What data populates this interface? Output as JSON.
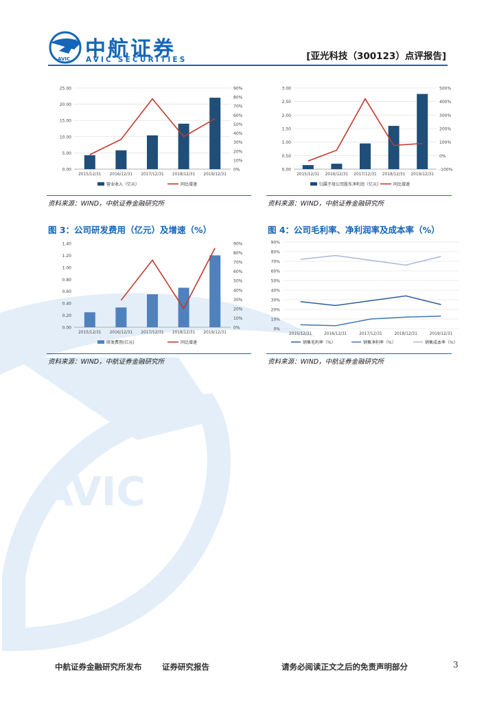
{
  "header": {
    "brand_cn": "中航证券",
    "brand_en": "AVIC SECURITIES",
    "logo_text": "AVIC",
    "report_tag": "[亚光科技（300123）点评报告]"
  },
  "watermark_text": "AVIC",
  "sources": {
    "s1": "资料来源：WIND，中航证券金融研究所",
    "s2": "资料来源：WIND，中航证券金融研究所",
    "s3": "资料来源：WIND，中航证券金融研究所",
    "s4": "资料来源：WIND，中航证券金融研究所"
  },
  "figure_titles": {
    "fig3": "图 3：公司研发费用（亿元）及增速（%）",
    "fig4": "图 4：公司毛利率、净利润率及成本率（%）"
  },
  "footer": {
    "left": "中航证券金融研究所发布",
    "middle": "证券研究报告",
    "right": "请务必阅读正文之后的免责声明部分",
    "page": "3"
  },
  "colors": {
    "brand": "#1565b8",
    "bar_dark": "#1f4e79",
    "bar_mid": "#4f81bd",
    "line_red": "#c0392b",
    "gross": "#2e5e94",
    "net": "#3f76b5",
    "cost": "#a9b8d8",
    "watermark": "#e3eef8"
  },
  "chart_data": [
    {
      "type": "bar",
      "categories": [
        "2015/12/31",
        "2016/12/31",
        "2017/12/31",
        "2018/12/31",
        "2019/12/31"
      ],
      "series": [
        {
          "name": "营业收入（亿元）",
          "kind": "bar",
          "axis": "left",
          "values": [
            4.3,
            5.8,
            10.4,
            14.0,
            22.0
          ]
        },
        {
          "name": "同比增速",
          "kind": "line",
          "axis": "right",
          "values": [
            16,
            33,
            78,
            36,
            56
          ]
        }
      ],
      "y_left": {
        "min": 0,
        "max": 25,
        "ticks": [
          "0.00",
          "5.00",
          "10.00",
          "15.00",
          "20.00",
          "25.00"
        ]
      },
      "y_right": {
        "min": 0,
        "max": 90,
        "ticks": [
          "0%",
          "10%",
          "20%",
          "30%",
          "40%",
          "50%",
          "60%",
          "70%",
          "80%",
          "90%"
        ]
      },
      "grid": true,
      "legend": "bottom"
    },
    {
      "type": "bar",
      "categories": [
        "2015/12/31",
        "2016/12/31",
        "2017/12/31",
        "2018/12/31",
        "2019/12/31"
      ],
      "series": [
        {
          "name": "归属于母公司股东净利润（亿元）",
          "kind": "bar",
          "axis": "left",
          "values": [
            0.15,
            0.2,
            0.95,
            1.6,
            2.78
          ]
        },
        {
          "name": "同比增速",
          "kind": "line",
          "axis": "right",
          "values": [
            -40,
            40,
            420,
            75,
            90
          ]
        }
      ],
      "y_left": {
        "min": 0,
        "max": 3,
        "ticks": [
          "0.00",
          "0.50",
          "1.00",
          "1.50",
          "2.00",
          "2.50",
          "3.00"
        ]
      },
      "y_right": {
        "min": -100,
        "max": 500,
        "ticks": [
          "-100%",
          "0%",
          "100%",
          "200%",
          "300%",
          "400%",
          "500%"
        ]
      },
      "grid": true,
      "legend": "bottom"
    },
    {
      "type": "bar",
      "title": "图 3：公司研发费用（亿元）及增速（%）",
      "categories": [
        "2015/12/31",
        "2016/12/31",
        "2017/12/31",
        "2018/12/31",
        "2019/12/31"
      ],
      "series": [
        {
          "name": "研发费用(亿元)",
          "kind": "bar",
          "axis": "left",
          "values": [
            0.25,
            0.33,
            0.55,
            0.66,
            1.2
          ]
        },
        {
          "name": "同比增速",
          "kind": "line",
          "axis": "right",
          "values": [
            null,
            29,
            72,
            20,
            85
          ]
        }
      ],
      "y_left": {
        "min": 0,
        "max": 1.4,
        "ticks": [
          "0.00",
          "0.20",
          "0.40",
          "0.60",
          "0.80",
          "1.00",
          "1.20",
          "1.40"
        ]
      },
      "y_right": {
        "min": 0,
        "max": 90,
        "ticks": [
          "0%",
          "10%",
          "20%",
          "30%",
          "40%",
          "50%",
          "60%",
          "70%",
          "80%",
          "90%"
        ]
      },
      "grid": false,
      "legend": "bottom"
    },
    {
      "type": "line",
      "title": "图 4：公司毛利率、净利润率及成本率（%）",
      "categories": [
        "2015/12/31",
        "2016/12/31",
        "2017/12/31",
        "2018/12/31",
        "2019/12/31"
      ],
      "series": [
        {
          "name": "销售毛利率（%）",
          "values": [
            28,
            24,
            29,
            34,
            25
          ]
        },
        {
          "name": "销售净利率（%）",
          "values": [
            4,
            3,
            10,
            12,
            13
          ]
        },
        {
          "name": "销售成本率（%）",
          "values": [
            72,
            76,
            71,
            66,
            75
          ]
        }
      ],
      "y": {
        "min": 0,
        "max": 90,
        "ticks": [
          "0%",
          "10%",
          "20%",
          "30%",
          "40%",
          "50%",
          "60%",
          "70%",
          "80%",
          "90%"
        ]
      },
      "grid": true,
      "legend": "bottom"
    }
  ]
}
